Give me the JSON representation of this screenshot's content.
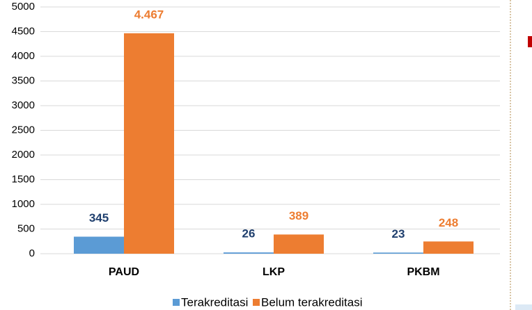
{
  "chart_data": {
    "type": "bar",
    "categories": [
      "PAUD",
      "LKP",
      "PKBM"
    ],
    "series": [
      {
        "name": "Terakreditasi",
        "color": "#5b9bd5",
        "label_color": "#1f3f6e",
        "values": [
          345,
          26,
          23
        ]
      },
      {
        "name": "Belum terakreditasi",
        "color": "#ed7d31",
        "label_color": "#ed7d31",
        "values": [
          4467,
          389,
          248
        ],
        "value_labels": [
          "4.467",
          "389",
          "248"
        ]
      }
    ],
    "ylim": [
      0,
      5000
    ],
    "yticks": [
      0,
      500,
      1000,
      1500,
      2000,
      2500,
      3000,
      3500,
      4000,
      4500,
      5000
    ],
    "grid": true,
    "legend": "bottom"
  }
}
